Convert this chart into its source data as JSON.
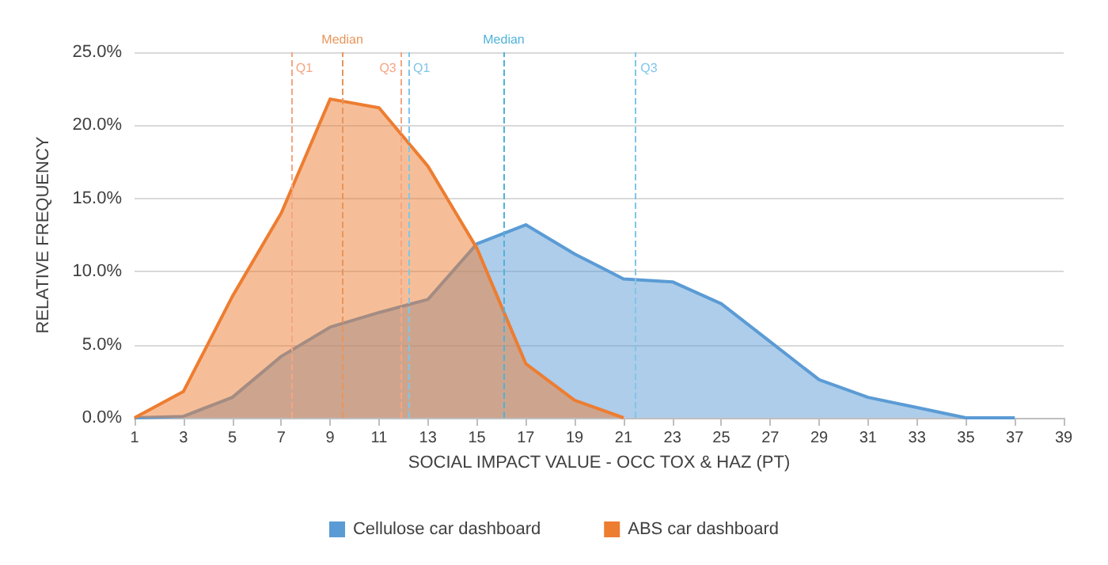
{
  "chart_data": {
    "type": "area",
    "xlabel": "SOCIAL IMPACT VALUE - OCC TOX & HAZ (PT)",
    "ylabel": "RELATIVE FREQUENCY",
    "xlim": [
      1,
      39
    ],
    "xticks": [
      1,
      3,
      5,
      7,
      9,
      11,
      13,
      15,
      17,
      19,
      21,
      23,
      25,
      27,
      29,
      31,
      33,
      35,
      37,
      39
    ],
    "ylim": [
      0,
      25
    ],
    "yticks": [
      {
        "value": 0,
        "label": "0.0%"
      },
      {
        "value": 5,
        "label": "5.0%"
      },
      {
        "value": 10,
        "label": "10.0%"
      },
      {
        "value": 15,
        "label": "15.0%"
      },
      {
        "value": 20,
        "label": "20.0%"
      },
      {
        "value": 25,
        "label": "25.0%"
      }
    ],
    "grid": "y",
    "legend": "bottom",
    "series": [
      {
        "name": "Cellulose car dashboard",
        "color": "#5b9bd5",
        "x": [
          1,
          3,
          5,
          7,
          9,
          11,
          13,
          15,
          17,
          19,
          21,
          23,
          25,
          27,
          29,
          31,
          33,
          35,
          37
        ],
        "values": [
          0,
          0.1,
          1.4,
          4.2,
          6.2,
          7.2,
          8.1,
          11.9,
          13.2,
          11.2,
          9.5,
          9.3,
          7.8,
          5.2,
          2.6,
          1.4,
          0.7,
          0,
          0
        ]
      },
      {
        "name": "ABS car dashboard",
        "color": "#ed7d31",
        "x": [
          1,
          3,
          5,
          7,
          9,
          11,
          13,
          15,
          17,
          19,
          21
        ],
        "values": [
          0,
          1.8,
          8.3,
          14,
          21.8,
          21.2,
          17.2,
          11.6,
          3.7,
          1.2,
          0
        ]
      }
    ],
    "ref_lines": [
      {
        "axis": "x",
        "value": 7.4,
        "label": "Q1",
        "color": "#f4a582",
        "line_style": "dashed"
      },
      {
        "axis": "x",
        "value": 9.5,
        "label": "Median",
        "color": "#e8955a",
        "line_style": "dashed"
      },
      {
        "axis": "x",
        "value": 11.9,
        "label": "Q3",
        "color": "#f4a582",
        "line_style": "dashed"
      },
      {
        "axis": "x",
        "value": 12.2,
        "label": "Q1",
        "color": "#7fc6e8",
        "line_style": "dashed"
      },
      {
        "axis": "x",
        "value": 16.1,
        "label": "Median",
        "color": "#4fb3d9",
        "line_style": "dashed"
      },
      {
        "axis": "x",
        "value": 21.5,
        "label": "Q3",
        "color": "#7fc6e8",
        "line_style": "dashed"
      }
    ]
  }
}
